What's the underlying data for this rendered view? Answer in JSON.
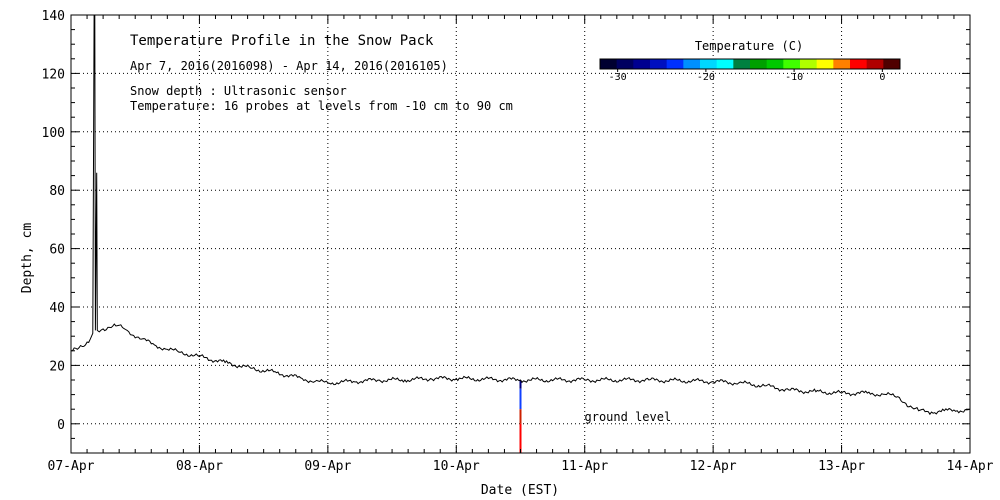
{
  "chart_data": {
    "type": "line",
    "title": "Temperature Profile in the Snow Pack",
    "subtitle": "Apr  7, 2016(2016098) - Apr 14, 2016(2016105)",
    "info_lines": [
      "Snow depth : Ultrasonic sensor",
      "Temperature: 16 probes at levels from -10 cm to 90 cm"
    ],
    "xlabel": "Date (EST)",
    "ylabel": "Depth, cm",
    "x_unit": "days since 07-Apr 00:00",
    "xlim": [
      0,
      7
    ],
    "ylim": [
      -10,
      140
    ],
    "x_ticks": [
      0,
      1,
      2,
      3,
      4,
      5,
      6,
      7
    ],
    "x_tick_labels": [
      "07-Apr",
      "08-Apr",
      "09-Apr",
      "10-Apr",
      "11-Apr",
      "12-Apr",
      "13-Apr",
      "14-Apr"
    ],
    "y_ticks": [
      0,
      20,
      40,
      60,
      80,
      100,
      120,
      140
    ],
    "y_tick_labels": [
      "0",
      "20",
      "40",
      "60",
      "80",
      "100",
      "120",
      "140"
    ],
    "grid": true,
    "annotation": "ground level",
    "annotation_pos": {
      "x": 3.5,
      "y": 1
    },
    "series": [
      {
        "name": "Snow depth",
        "color": "#000000",
        "points": [
          [
            0.0,
            25
          ],
          [
            0.05,
            25.5
          ],
          [
            0.1,
            26.5
          ],
          [
            0.15,
            29
          ],
          [
            0.17,
            31
          ],
          [
            0.18,
            140
          ],
          [
            0.185,
            140
          ],
          [
            0.19,
            32
          ],
          [
            0.2,
            86
          ],
          [
            0.205,
            32
          ],
          [
            0.25,
            32.5
          ],
          [
            0.3,
            33
          ],
          [
            0.35,
            33.5
          ],
          [
            0.4,
            33
          ],
          [
            0.45,
            31.5
          ],
          [
            0.55,
            29
          ],
          [
            0.65,
            27
          ],
          [
            0.75,
            25.5
          ],
          [
            0.85,
            24.5
          ],
          [
            1.0,
            23
          ],
          [
            1.2,
            21
          ],
          [
            1.4,
            19
          ],
          [
            1.6,
            17.5
          ],
          [
            1.8,
            15.5
          ],
          [
            1.9,
            14.5
          ],
          [
            2.0,
            14
          ],
          [
            2.2,
            14.5
          ],
          [
            2.4,
            15
          ],
          [
            2.6,
            15
          ],
          [
            2.8,
            15.5
          ],
          [
            3.0,
            15.5
          ],
          [
            3.5,
            15
          ],
          [
            4.0,
            15
          ],
          [
            4.5,
            15
          ],
          [
            5.0,
            14.5
          ],
          [
            5.2,
            14
          ],
          [
            5.4,
            13
          ],
          [
            5.6,
            11.5
          ],
          [
            5.8,
            11
          ],
          [
            6.0,
            10.5
          ],
          [
            6.2,
            10.5
          ],
          [
            6.35,
            10
          ],
          [
            6.45,
            9
          ],
          [
            6.5,
            7
          ],
          [
            6.55,
            5.5
          ],
          [
            6.6,
            4.5
          ],
          [
            6.7,
            4
          ],
          [
            6.8,
            4.5
          ],
          [
            6.9,
            4.5
          ],
          [
            7.0,
            5
          ]
        ]
      }
    ],
    "probe_bar": {
      "x": 3.5,
      "segments": [
        {
          "from": 12,
          "to": 15,
          "color": "#000080"
        },
        {
          "from": 5,
          "to": 12,
          "color": "#1040ff"
        },
        {
          "from": 0,
          "to": 5,
          "color": "#cc2000"
        },
        {
          "from": -10,
          "to": 0,
          "color": "#ff0000"
        }
      ]
    },
    "colorbar": {
      "title": "Temperature (C)",
      "range": [
        -32,
        2
      ],
      "tick_values": [
        -30,
        -20,
        -10,
        0
      ],
      "tick_labels": [
        "-30",
        "-20",
        "-10",
        "0"
      ],
      "colors": [
        "#000030",
        "#000060",
        "#000090",
        "#0010c0",
        "#0030ff",
        "#0090ff",
        "#00d8ff",
        "#00ffff",
        "#008040",
        "#00a000",
        "#00c800",
        "#40ff00",
        "#b0ff00",
        "#ffff00",
        "#ff8000",
        "#ff0000",
        "#b00000",
        "#500000"
      ]
    }
  }
}
